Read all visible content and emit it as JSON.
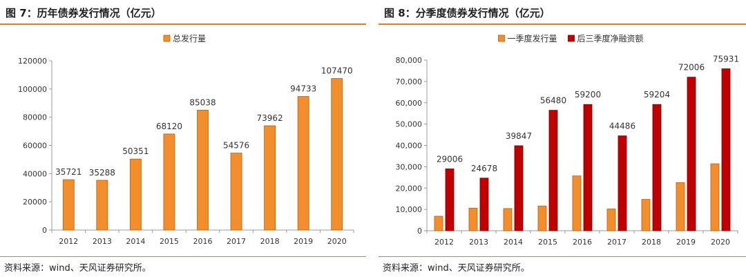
{
  "colors": {
    "orange": "#F28E2B",
    "orange_edge": "#B85F10",
    "darkred": "#C00000",
    "darkred_edge": "#7A0000",
    "rule": "#E07B2A"
  },
  "left": {
    "title": "图 7：历年债券发行情况（亿元）",
    "source": "资料来源：wind、天风证券研究所。"
  },
  "right": {
    "title": "图 8：分季度债券发行情况（亿元）",
    "source": "资料来源：wind、天风证券研究所。"
  },
  "chart_data": [
    {
      "type": "bar",
      "categories": [
        "2012",
        "2013",
        "2014",
        "2015",
        "2016",
        "2017",
        "2018",
        "2019",
        "2020"
      ],
      "series": [
        {
          "name": "总发行量",
          "values": [
            35721,
            35288,
            50351,
            68120,
            85038,
            54576,
            73962,
            94733,
            107470
          ]
        }
      ],
      "data_labels": [
        "35721",
        "35288",
        "50351",
        "68120",
        "85038",
        "54576",
        "73962",
        "94733",
        "107470"
      ],
      "yticks": [
        0,
        20000,
        40000,
        60000,
        80000,
        100000,
        120000
      ],
      "ytick_labels": [
        "0",
        "20000",
        "40000",
        "60000",
        "80000",
        "100000",
        "120000"
      ],
      "ylim": [
        0,
        120000
      ],
      "legend_position": "top-center",
      "grid": false
    },
    {
      "type": "bar",
      "categories": [
        "2012",
        "2013",
        "2014",
        "2015",
        "2016",
        "2017",
        "2018",
        "2019",
        "2020"
      ],
      "series": [
        {
          "name": "一季度发行量",
          "values": [
            6800,
            10600,
            10400,
            11600,
            25700,
            10200,
            14700,
            22600,
            31400
          ]
        },
        {
          "name": "后三季度净融资额",
          "values": [
            29006,
            24678,
            39847,
            56480,
            59200,
            44486,
            59204,
            72006,
            75931
          ]
        }
      ],
      "data_labels": [
        "29006",
        "24678",
        "39847",
        "56480",
        "59200",
        "44486",
        "59204",
        "72006",
        "75931"
      ],
      "yticks": [
        0,
        10000,
        20000,
        30000,
        40000,
        50000,
        60000,
        70000,
        80000
      ],
      "ytick_labels": [
        "0",
        "10,000",
        "20,000",
        "30,000",
        "40,000",
        "50,000",
        "60,000",
        "70,000",
        "80,000"
      ],
      "ylim": [
        0,
        80000
      ],
      "legend_position": "top-center",
      "grid": false
    }
  ]
}
